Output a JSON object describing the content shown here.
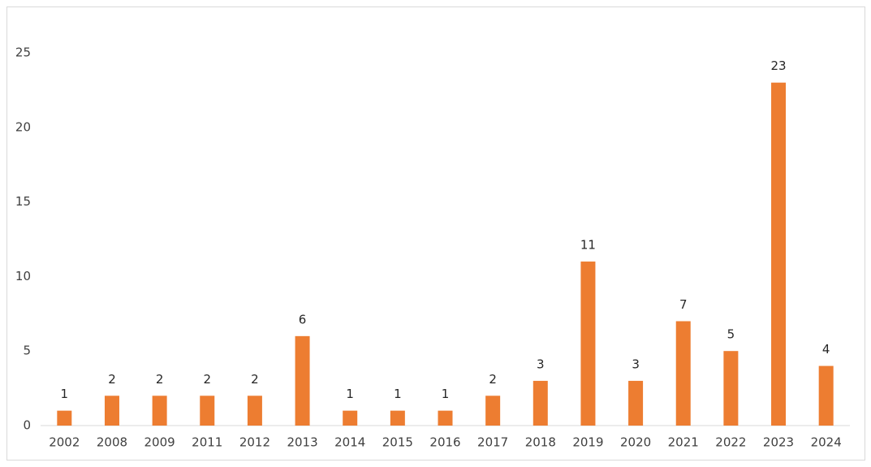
{
  "chart_data": {
    "type": "bar",
    "categories": [
      "2002",
      "2008",
      "2009",
      "2011",
      "2012",
      "2013",
      "2014",
      "2015",
      "2016",
      "2017",
      "2018",
      "2019",
      "2020",
      "2021",
      "2022",
      "2023",
      "2024"
    ],
    "values": [
      1,
      2,
      2,
      2,
      2,
      6,
      1,
      1,
      1,
      2,
      3,
      11,
      3,
      7,
      5,
      23,
      4
    ],
    "color": "#ed7d31",
    "ylim": [
      0,
      25
    ],
    "yticks": [
      0,
      5,
      10,
      15,
      20,
      25
    ],
    "grid": false
  }
}
